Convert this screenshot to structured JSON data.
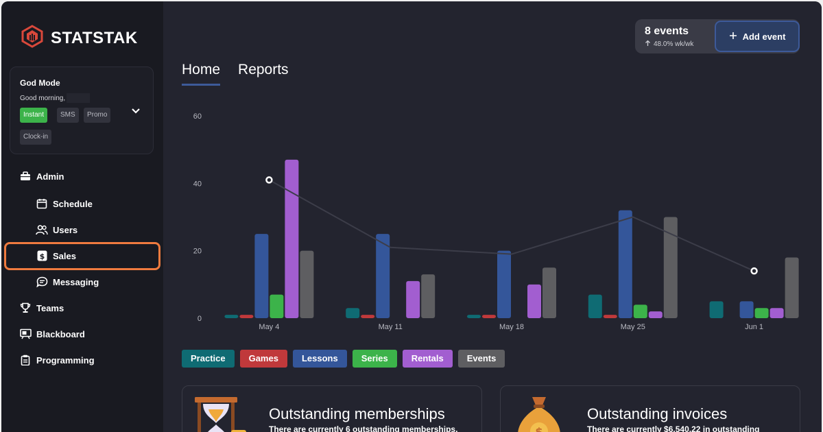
{
  "brand": {
    "name": "STATSTAK",
    "accent": "#d9483b"
  },
  "profile": {
    "name": "God Mode",
    "greeting": "Good morning,",
    "chips": [
      "Instant",
      "SMS",
      "Promo",
      "Clock-in"
    ]
  },
  "nav": {
    "admin": "Admin",
    "schedule": "Schedule",
    "users": "Users",
    "sales": "Sales",
    "messaging": "Messaging",
    "teams": "Teams",
    "blackboard": "Blackboard",
    "programming": "Programming"
  },
  "tabs": {
    "home": "Home",
    "reports": "Reports"
  },
  "events_summary": {
    "count": "8 events",
    "trend": "48.0% wk/wk",
    "add_label": "Add event"
  },
  "chart_data": {
    "type": "bar",
    "categories": [
      "May 4",
      "May 11",
      "May 18",
      "May 25",
      "Jun 1"
    ],
    "ylim": [
      0,
      60
    ],
    "yticks": [
      0,
      20,
      40,
      60
    ],
    "series": [
      {
        "name": "Practice",
        "color": "#0f6b73",
        "values": [
          1,
          3,
          1,
          7,
          5
        ]
      },
      {
        "name": "Games",
        "color": "#c0393b",
        "values": [
          1,
          1,
          1,
          1,
          0
        ]
      },
      {
        "name": "Lessons",
        "color": "#34569a",
        "values": [
          25,
          25,
          20,
          32,
          5
        ]
      },
      {
        "name": "Series",
        "color": "#3cb34a",
        "values": [
          7,
          0,
          0,
          4,
          3
        ]
      },
      {
        "name": "Rentals",
        "color": "#a25ed0",
        "values": [
          47,
          11,
          10,
          2,
          3
        ]
      },
      {
        "name": "Events",
        "color": "#5e5e61",
        "values": [
          20,
          13,
          15,
          30,
          18
        ]
      }
    ],
    "line": {
      "name": "Trend",
      "values": [
        41,
        21,
        19,
        30,
        14
      ]
    },
    "legend_position": "bottom"
  },
  "legend": [
    {
      "label": "Practice",
      "color": "#0f6b73"
    },
    {
      "label": "Games",
      "color": "#c0393b"
    },
    {
      "label": "Lessons",
      "color": "#34569a"
    },
    {
      "label": "Series",
      "color": "#3cb34a"
    },
    {
      "label": "Rentals",
      "color": "#a25ed0"
    },
    {
      "label": "Events",
      "color": "#5e5e61"
    }
  ],
  "cards": {
    "memberships": {
      "title": "Outstanding memberships",
      "subtitle": "There are currently 6 outstanding memberships."
    },
    "invoices": {
      "title": "Outstanding invoices",
      "subtitle": "There are currently $6,540.22 in outstanding"
    }
  }
}
